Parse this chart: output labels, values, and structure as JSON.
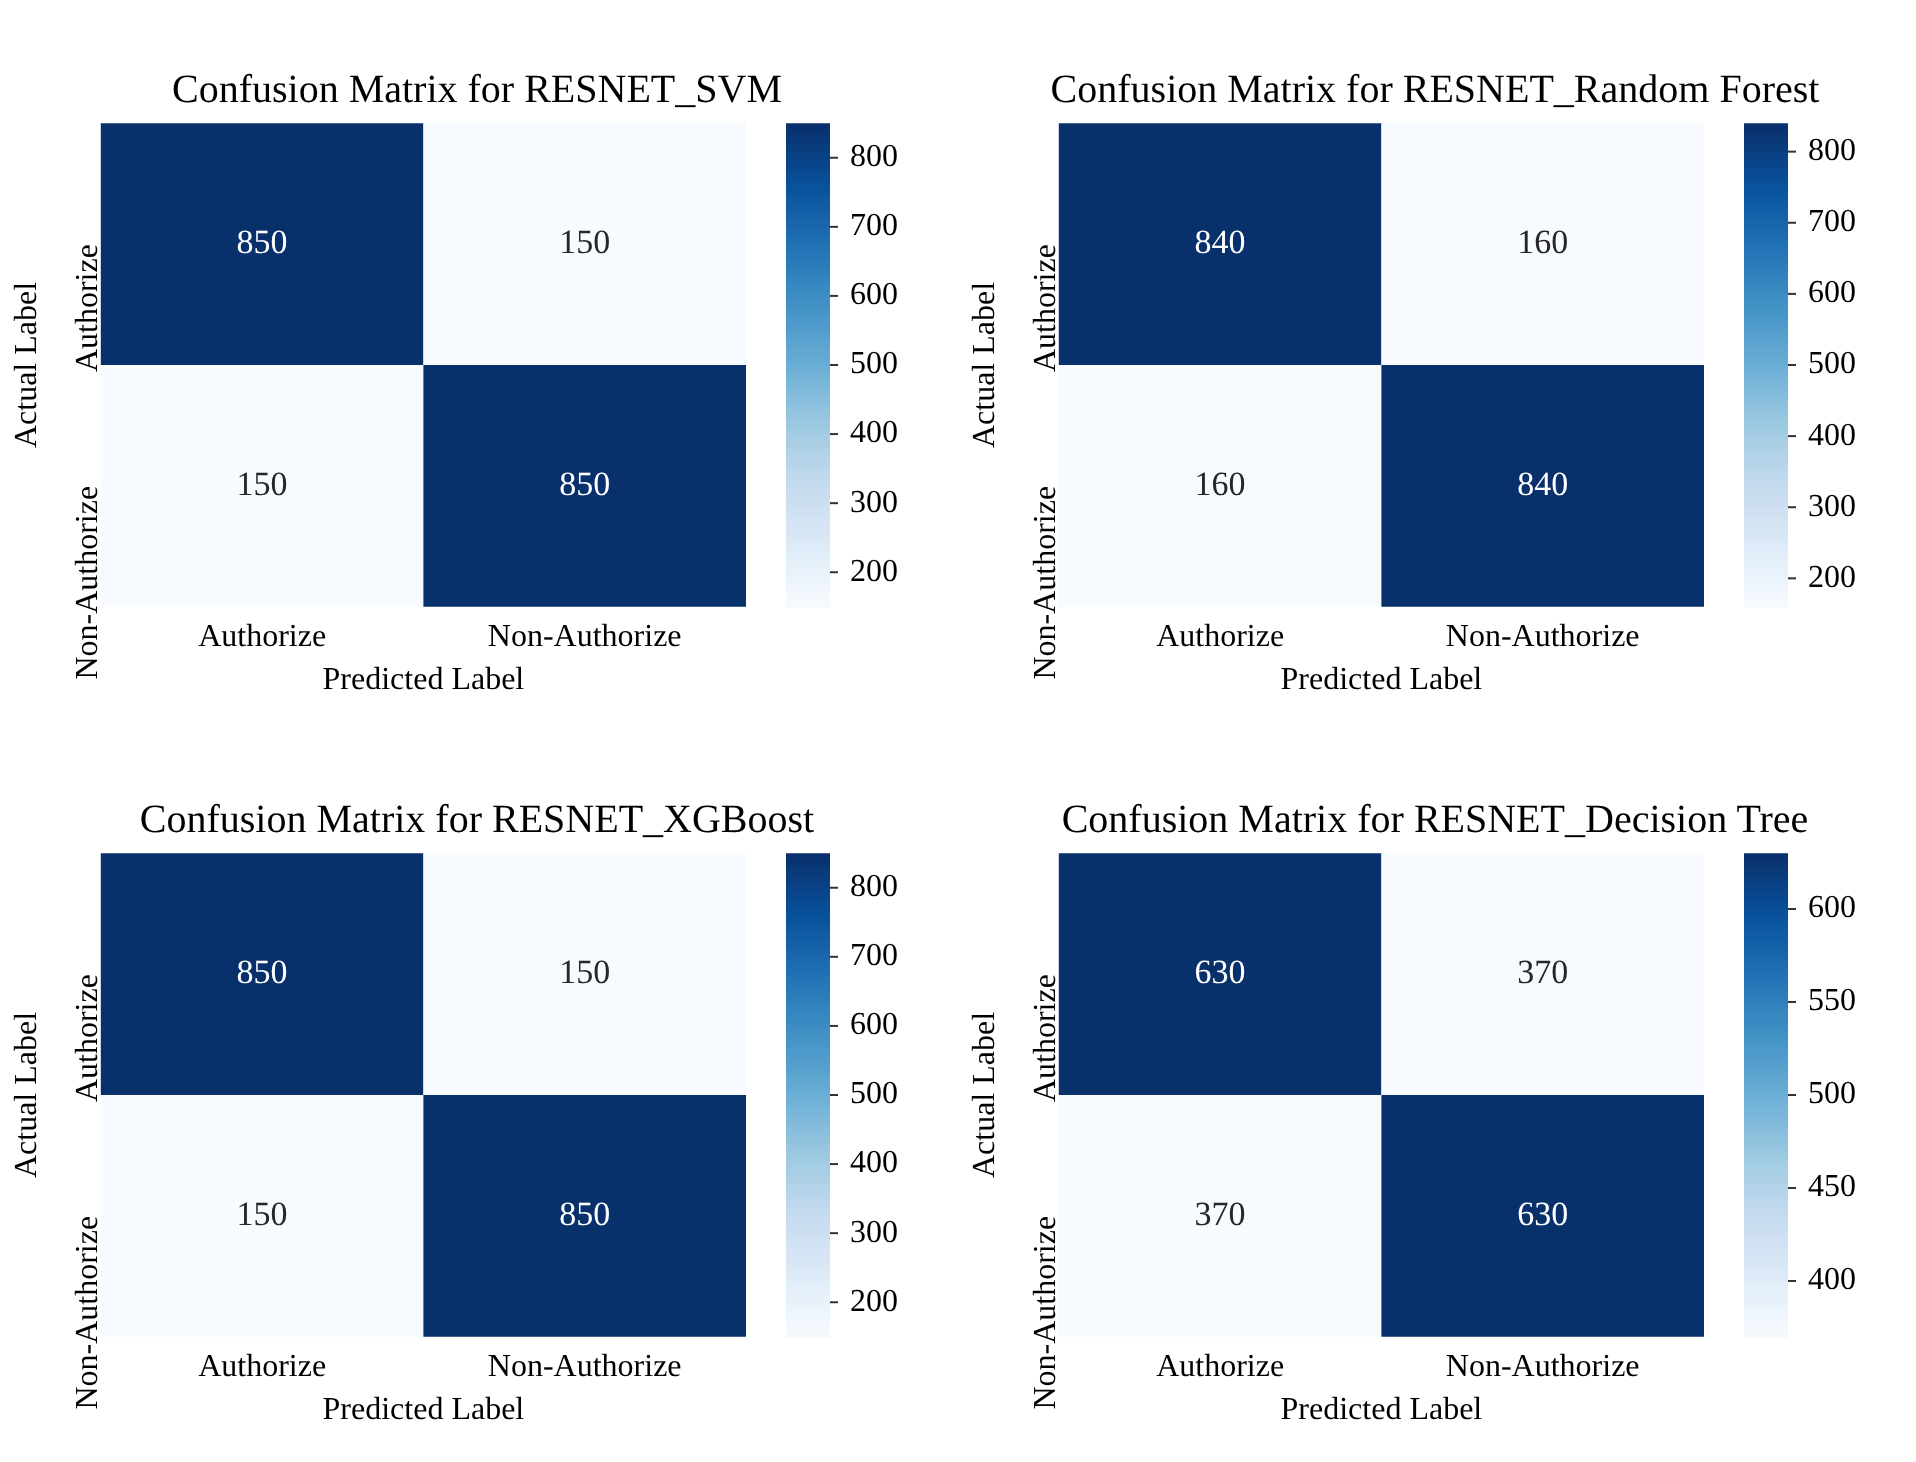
{
  "chart_data": [
    {
      "type": "heatmap",
      "title": "Confusion Matrix for RESNET_SVM",
      "xlabel": "Predicted Label",
      "ylabel": "Actual Label",
      "categories": [
        "Authorize",
        "Non-Authorize"
      ],
      "y_categories": [
        "Authorize",
        "Non-Authorize"
      ],
      "cells": [
        [
          850,
          150
        ],
        [
          150,
          850
        ]
      ],
      "clim": [
        150,
        850
      ],
      "cticks": [
        200,
        300,
        400,
        500,
        600,
        700,
        800
      ],
      "data_labels": true
    },
    {
      "type": "heatmap",
      "title": "Confusion Matrix for RESNET_Random Forest",
      "xlabel": "Predicted Label",
      "ylabel": "Actual Label",
      "categories": [
        "Authorize",
        "Non-Authorize"
      ],
      "y_categories": [
        "Authorize",
        "Non-Authorize"
      ],
      "cells": [
        [
          840,
          160
        ],
        [
          160,
          840
        ]
      ],
      "clim": [
        160,
        840
      ],
      "cticks": [
        200,
        300,
        400,
        500,
        600,
        700,
        800
      ],
      "data_labels": true
    },
    {
      "type": "heatmap",
      "title": "Confusion Matrix for RESNET_XGBoost",
      "xlabel": "Predicted Label",
      "ylabel": "Actual Label",
      "categories": [
        "Authorize",
        "Non-Authorize"
      ],
      "y_categories": [
        "Authorize",
        "Non-Authorize"
      ],
      "cells": [
        [
          850,
          150
        ],
        [
          150,
          850
        ]
      ],
      "clim": [
        150,
        850
      ],
      "cticks": [
        200,
        300,
        400,
        500,
        600,
        700,
        800
      ],
      "data_labels": true
    },
    {
      "type": "heatmap",
      "title": "Confusion Matrix for RESNET_Decision Tree",
      "xlabel": "Predicted Label",
      "ylabel": "Actual Label",
      "categories": [
        "Authorize",
        "Non-Authorize"
      ],
      "y_categories": [
        "Authorize",
        "Non-Authorize"
      ],
      "cells": [
        [
          630,
          370
        ],
        [
          370,
          630
        ]
      ],
      "clim": [
        370,
        630
      ],
      "cticks": [
        400,
        450,
        500,
        550,
        600
      ],
      "data_labels": true
    }
  ]
}
